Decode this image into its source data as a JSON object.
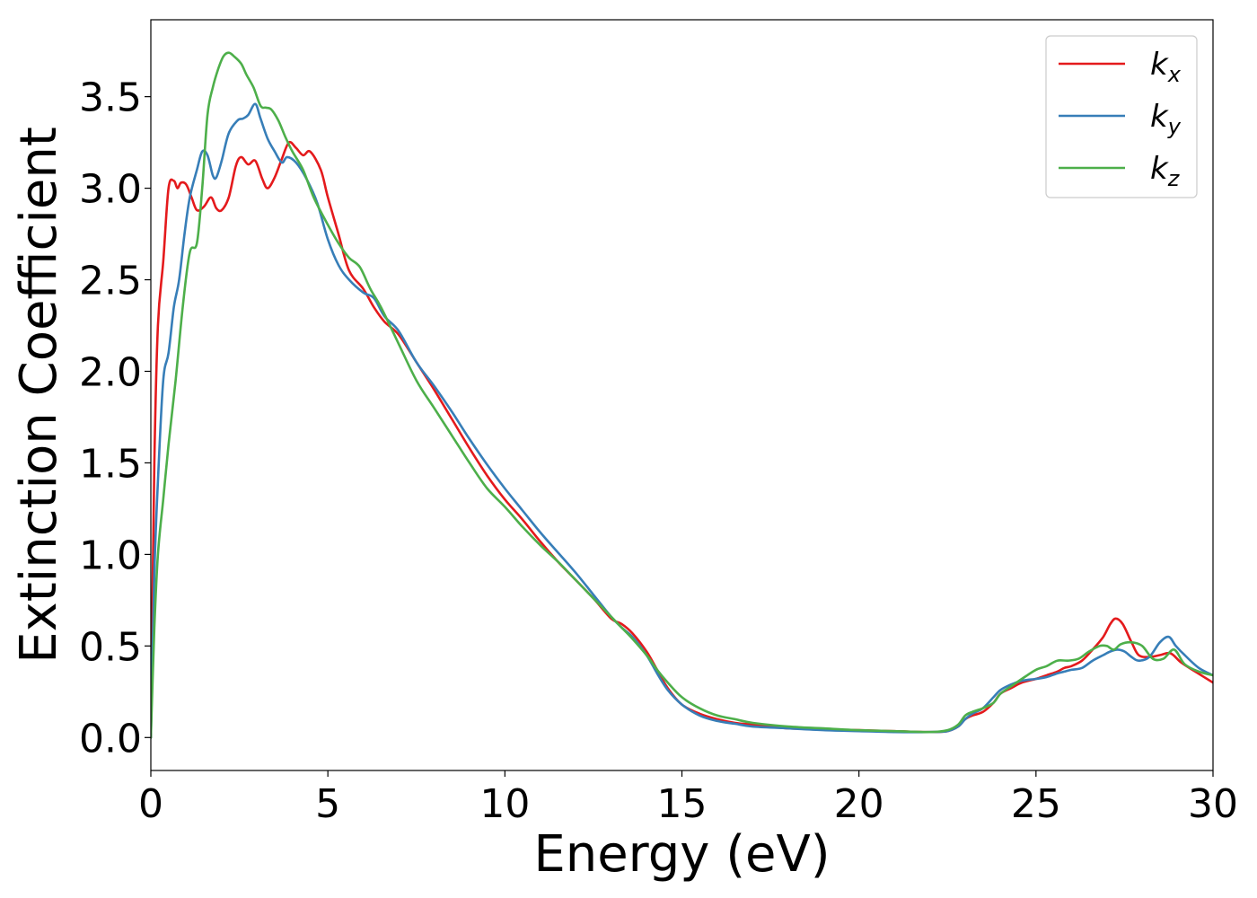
{
  "chart_data": {
    "type": "line",
    "title": "",
    "xlabel": "Energy (eV)",
    "ylabel": "Extinction Coefficient",
    "xlim": [
      0,
      30
    ],
    "ylim": [
      -0.18,
      3.92
    ],
    "xticks": [
      0,
      5,
      10,
      15,
      20,
      25,
      30
    ],
    "xtick_labels": [
      "0",
      "5",
      "10",
      "15",
      "20",
      "25",
      "30"
    ],
    "yticks": [
      0.0,
      0.5,
      1.0,
      1.5,
      2.0,
      2.5,
      3.0,
      3.5
    ],
    "ytick_labels": [
      "0.0",
      "0.5",
      "1.0",
      "1.5",
      "2.0",
      "2.5",
      "3.0",
      "3.5"
    ],
    "grid": false,
    "legend_position": "top-right",
    "series": [
      {
        "name": "k",
        "subscript": "x",
        "color": "#e41a1c",
        "x": [
          0,
          0.1,
          0.2,
          0.35,
          0.5,
          0.65,
          0.75,
          0.85,
          1.0,
          1.15,
          1.3,
          1.5,
          1.7,
          1.85,
          2.0,
          2.2,
          2.4,
          2.55,
          2.75,
          2.95,
          3.15,
          3.3,
          3.5,
          3.7,
          3.9,
          4.1,
          4.3,
          4.5,
          4.8,
          5.0,
          5.3,
          5.6,
          6.0,
          6.3,
          6.6,
          7.0,
          7.5,
          8.0,
          8.5,
          9.0,
          9.5,
          10.0,
          10.5,
          11.0,
          11.5,
          12.0,
          12.5,
          13.0,
          13.3,
          13.6,
          14.0,
          14.3,
          14.6,
          15.0,
          15.5,
          16.0,
          16.5,
          17.0,
          18.0,
          19.0,
          20.0,
          21.0,
          22.0,
          22.5,
          22.8,
          23.0,
          23.2,
          23.5,
          23.8,
          24.0,
          24.3,
          24.6,
          25.0,
          25.3,
          25.6,
          25.8,
          26.0,
          26.3,
          26.6,
          26.9,
          27.1,
          27.25,
          27.45,
          27.7,
          27.9,
          28.2,
          28.5,
          28.8,
          29.1,
          29.5,
          30.0
        ],
        "y": [
          0.0,
          1.5,
          2.25,
          2.6,
          3.0,
          3.04,
          3.0,
          3.03,
          3.02,
          2.95,
          2.88,
          2.9,
          2.95,
          2.89,
          2.88,
          2.95,
          3.12,
          3.17,
          3.13,
          3.15,
          3.05,
          3.0,
          3.06,
          3.16,
          3.25,
          3.22,
          3.18,
          3.2,
          3.1,
          2.95,
          2.75,
          2.55,
          2.45,
          2.35,
          2.27,
          2.2,
          2.05,
          1.9,
          1.74,
          1.58,
          1.43,
          1.3,
          1.19,
          1.07,
          0.96,
          0.86,
          0.76,
          0.65,
          0.62,
          0.57,
          0.47,
          0.37,
          0.27,
          0.18,
          0.13,
          0.1,
          0.08,
          0.07,
          0.05,
          0.045,
          0.04,
          0.035,
          0.03,
          0.035,
          0.06,
          0.1,
          0.12,
          0.14,
          0.19,
          0.24,
          0.27,
          0.3,
          0.32,
          0.34,
          0.36,
          0.38,
          0.39,
          0.42,
          0.48,
          0.55,
          0.62,
          0.65,
          0.62,
          0.52,
          0.45,
          0.44,
          0.45,
          0.46,
          0.41,
          0.36,
          0.3
        ]
      },
      {
        "name": "k",
        "subscript": "y",
        "color": "#377eb8",
        "x": [
          0,
          0.1,
          0.2,
          0.35,
          0.5,
          0.65,
          0.8,
          0.95,
          1.1,
          1.3,
          1.45,
          1.6,
          1.75,
          1.85,
          2.0,
          2.2,
          2.45,
          2.6,
          2.75,
          2.95,
          3.1,
          3.3,
          3.5,
          3.7,
          3.85,
          4.1,
          4.4,
          4.7,
          5.0,
          5.3,
          5.6,
          6.0,
          6.3,
          6.6,
          7.0,
          7.5,
          8.0,
          8.5,
          9.0,
          9.5,
          10.0,
          10.5,
          11.0,
          11.5,
          12.0,
          12.5,
          13.0,
          13.3,
          13.6,
          14.0,
          14.3,
          14.6,
          15.0,
          15.5,
          16.0,
          16.5,
          17.0,
          18.0,
          19.0,
          20.0,
          21.0,
          22.0,
          22.5,
          22.8,
          23.0,
          23.2,
          23.5,
          23.8,
          24.0,
          24.3,
          24.6,
          25.0,
          25.3,
          25.6,
          25.8,
          26.0,
          26.3,
          26.6,
          26.9,
          27.1,
          27.3,
          27.5,
          27.7,
          27.9,
          28.2,
          28.5,
          28.75,
          28.95,
          29.2,
          29.6,
          30.0
        ],
        "y": [
          0.0,
          0.9,
          1.4,
          1.95,
          2.1,
          2.35,
          2.5,
          2.75,
          2.95,
          3.1,
          3.2,
          3.18,
          3.07,
          3.06,
          3.15,
          3.3,
          3.37,
          3.38,
          3.4,
          3.46,
          3.38,
          3.27,
          3.2,
          3.14,
          3.17,
          3.14,
          3.05,
          2.92,
          2.72,
          2.58,
          2.5,
          2.43,
          2.4,
          2.3,
          2.22,
          2.05,
          1.92,
          1.78,
          1.63,
          1.49,
          1.36,
          1.24,
          1.12,
          1.01,
          0.9,
          0.78,
          0.66,
          0.6,
          0.55,
          0.45,
          0.35,
          0.26,
          0.18,
          0.12,
          0.09,
          0.075,
          0.06,
          0.05,
          0.04,
          0.035,
          0.03,
          0.03,
          0.035,
          0.06,
          0.1,
          0.13,
          0.16,
          0.22,
          0.26,
          0.29,
          0.31,
          0.32,
          0.33,
          0.35,
          0.36,
          0.37,
          0.38,
          0.42,
          0.45,
          0.47,
          0.48,
          0.47,
          0.44,
          0.42,
          0.44,
          0.52,
          0.55,
          0.5,
          0.45,
          0.38,
          0.34
        ]
      },
      {
        "name": "k",
        "subscript": "z",
        "color": "#4daf4a",
        "x": [
          0,
          0.1,
          0.2,
          0.35,
          0.5,
          0.7,
          0.9,
          1.1,
          1.3,
          1.45,
          1.6,
          1.75,
          1.9,
          2.05,
          2.2,
          2.35,
          2.55,
          2.7,
          2.9,
          3.1,
          3.25,
          3.4,
          3.6,
          3.8,
          4.0,
          4.3,
          4.6,
          5.0,
          5.3,
          5.6,
          5.9,
          6.2,
          6.5,
          7.0,
          7.5,
          8.0,
          8.5,
          9.0,
          9.5,
          10.0,
          10.5,
          11.0,
          11.5,
          12.0,
          12.5,
          13.0,
          13.3,
          13.6,
          14.0,
          14.3,
          14.6,
          15.0,
          15.5,
          16.0,
          16.5,
          17.0,
          18.0,
          19.0,
          20.0,
          21.0,
          22.0,
          22.5,
          22.8,
          23.0,
          23.2,
          23.5,
          23.8,
          24.0,
          24.3,
          24.6,
          25.0,
          25.3,
          25.6,
          25.9,
          26.2,
          26.5,
          26.8,
          27.0,
          27.2,
          27.4,
          27.7,
          28.0,
          28.3,
          28.6,
          28.9,
          29.2,
          29.6,
          30.0
        ],
        "y": [
          0.0,
          0.6,
          1.0,
          1.3,
          1.6,
          1.95,
          2.35,
          2.65,
          2.7,
          3.0,
          3.4,
          3.55,
          3.65,
          3.72,
          3.74,
          3.72,
          3.68,
          3.62,
          3.55,
          3.45,
          3.44,
          3.43,
          3.37,
          3.28,
          3.2,
          3.1,
          2.95,
          2.8,
          2.7,
          2.62,
          2.57,
          2.45,
          2.35,
          2.15,
          1.95,
          1.8,
          1.65,
          1.5,
          1.36,
          1.26,
          1.15,
          1.05,
          0.96,
          0.86,
          0.76,
          0.66,
          0.6,
          0.54,
          0.45,
          0.37,
          0.3,
          0.22,
          0.16,
          0.12,
          0.1,
          0.08,
          0.06,
          0.05,
          0.04,
          0.035,
          0.03,
          0.04,
          0.07,
          0.12,
          0.14,
          0.16,
          0.19,
          0.24,
          0.28,
          0.32,
          0.37,
          0.39,
          0.42,
          0.42,
          0.43,
          0.47,
          0.5,
          0.5,
          0.48,
          0.51,
          0.52,
          0.5,
          0.43,
          0.43,
          0.48,
          0.4,
          0.36,
          0.34
        ]
      }
    ]
  }
}
